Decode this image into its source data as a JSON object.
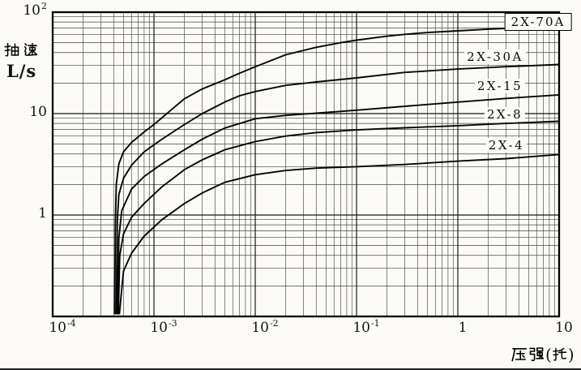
{
  "chart_data": {
    "type": "line",
    "title": "",
    "xlabel": "压强(托)",
    "ylabel": "抽速 L/s",
    "y_axis_cjk": "抽速",
    "y_unit_label": "L/s",
    "x_axis_cjk": "压强",
    "x_axis_unit_cjk": "托",
    "x_scale": "log",
    "y_scale": "log",
    "xlim": [
      0.0001,
      10
    ],
    "ylim": [
      0.1,
      100
    ],
    "grid": "log-log graph paper: major decade lines plus minor lines at 2-9 per decade",
    "legend_position": "inline labels on curves, right side",
    "x_ticks": [
      {
        "base": "10",
        "sup": "-4",
        "value": 0.0001
      },
      {
        "base": "10",
        "sup": "-3",
        "value": 0.001
      },
      {
        "base": "10",
        "sup": "-2",
        "value": 0.01
      },
      {
        "base": "10",
        "sup": "-1",
        "value": 0.1
      },
      {
        "base": "1",
        "value": 1
      },
      {
        "base": "10",
        "value": 10
      }
    ],
    "y_ticks": [
      {
        "base": "10",
        "sup": "2",
        "value": 100
      },
      {
        "base": "10",
        "value": 10
      },
      {
        "base": "1",
        "value": 1
      }
    ],
    "series": [
      {
        "name": "2X-70A",
        "label_boxed": true,
        "points": [
          [
            0.00041,
            0.105
          ],
          [
            0.000415,
            0.8
          ],
          [
            0.000425,
            2.0
          ],
          [
            0.00045,
            3.2
          ],
          [
            0.0005,
            4.2
          ],
          [
            0.0006,
            5.2
          ],
          [
            0.0008,
            6.6
          ],
          [
            0.001,
            7.8
          ],
          [
            0.0015,
            11
          ],
          [
            0.002,
            14
          ],
          [
            0.003,
            17.5
          ],
          [
            0.005,
            21.5
          ],
          [
            0.007,
            25
          ],
          [
            0.01,
            29
          ],
          [
            0.02,
            38
          ],
          [
            0.04,
            45
          ],
          [
            0.07,
            50
          ],
          [
            0.1,
            53
          ],
          [
            0.2,
            58
          ],
          [
            0.3,
            60.5
          ],
          [
            0.5,
            63
          ],
          [
            1,
            65.5
          ],
          [
            2,
            68
          ],
          [
            3,
            69
          ],
          [
            5,
            70.5
          ],
          [
            10,
            72
          ]
        ]
      },
      {
        "name": "2X-30A",
        "label_boxed": false,
        "points": [
          [
            0.000425,
            0.105
          ],
          [
            0.000435,
            0.9
          ],
          [
            0.00045,
            1.6
          ],
          [
            0.0005,
            2.3
          ],
          [
            0.0006,
            3.1
          ],
          [
            0.0008,
            4.2
          ],
          [
            0.0012,
            5.6
          ],
          [
            0.002,
            7.8
          ],
          [
            0.003,
            10
          ],
          [
            0.005,
            13
          ],
          [
            0.007,
            15
          ],
          [
            0.01,
            16.5
          ],
          [
            0.02,
            19
          ],
          [
            0.04,
            20.5
          ],
          [
            0.1,
            22.5
          ],
          [
            0.3,
            25.5
          ],
          [
            1,
            27.5
          ],
          [
            3,
            29
          ],
          [
            10,
            30.5
          ]
        ]
      },
      {
        "name": "2X-15",
        "label_boxed": false,
        "points": [
          [
            0.000435,
            0.105
          ],
          [
            0.00045,
            0.6
          ],
          [
            0.00048,
            1.1
          ],
          [
            0.0006,
            1.8
          ],
          [
            0.0008,
            2.4
          ],
          [
            0.0012,
            3.2
          ],
          [
            0.002,
            4.4
          ],
          [
            0.003,
            5.6
          ],
          [
            0.005,
            7.2
          ],
          [
            0.01,
            8.9
          ],
          [
            0.02,
            9.6
          ],
          [
            0.04,
            10.1
          ],
          [
            0.1,
            10.8
          ],
          [
            0.3,
            11.8
          ],
          [
            1,
            13
          ],
          [
            3,
            14.1
          ],
          [
            10,
            15.3
          ]
        ]
      },
      {
        "name": "2X-8",
        "label_boxed": false,
        "points": [
          [
            0.000445,
            0.105
          ],
          [
            0.00046,
            0.4
          ],
          [
            0.0005,
            0.65
          ],
          [
            0.0006,
            0.95
          ],
          [
            0.0008,
            1.3
          ],
          [
            0.0012,
            1.9
          ],
          [
            0.002,
            2.8
          ],
          [
            0.003,
            3.5
          ],
          [
            0.005,
            4.4
          ],
          [
            0.01,
            5.3
          ],
          [
            0.02,
            6.0
          ],
          [
            0.04,
            6.5
          ],
          [
            0.1,
            6.9
          ],
          [
            0.3,
            7.25
          ],
          [
            1,
            7.6
          ],
          [
            3,
            8.0
          ],
          [
            10,
            8.4
          ]
        ]
      },
      {
        "name": "2X-4",
        "label_boxed": false,
        "points": [
          [
            0.000455,
            0.105
          ],
          [
            0.0005,
            0.28
          ],
          [
            0.0006,
            0.42
          ],
          [
            0.0008,
            0.62
          ],
          [
            0.0012,
            0.9
          ],
          [
            0.002,
            1.3
          ],
          [
            0.003,
            1.65
          ],
          [
            0.005,
            2.1
          ],
          [
            0.01,
            2.5
          ],
          [
            0.02,
            2.75
          ],
          [
            0.04,
            2.9
          ],
          [
            0.1,
            3.0
          ],
          [
            0.3,
            3.15
          ],
          [
            1,
            3.4
          ],
          [
            3,
            3.6
          ],
          [
            10,
            3.95
          ]
        ]
      }
    ]
  },
  "labels": {
    "paren_open": "(",
    "paren_close": ")"
  }
}
